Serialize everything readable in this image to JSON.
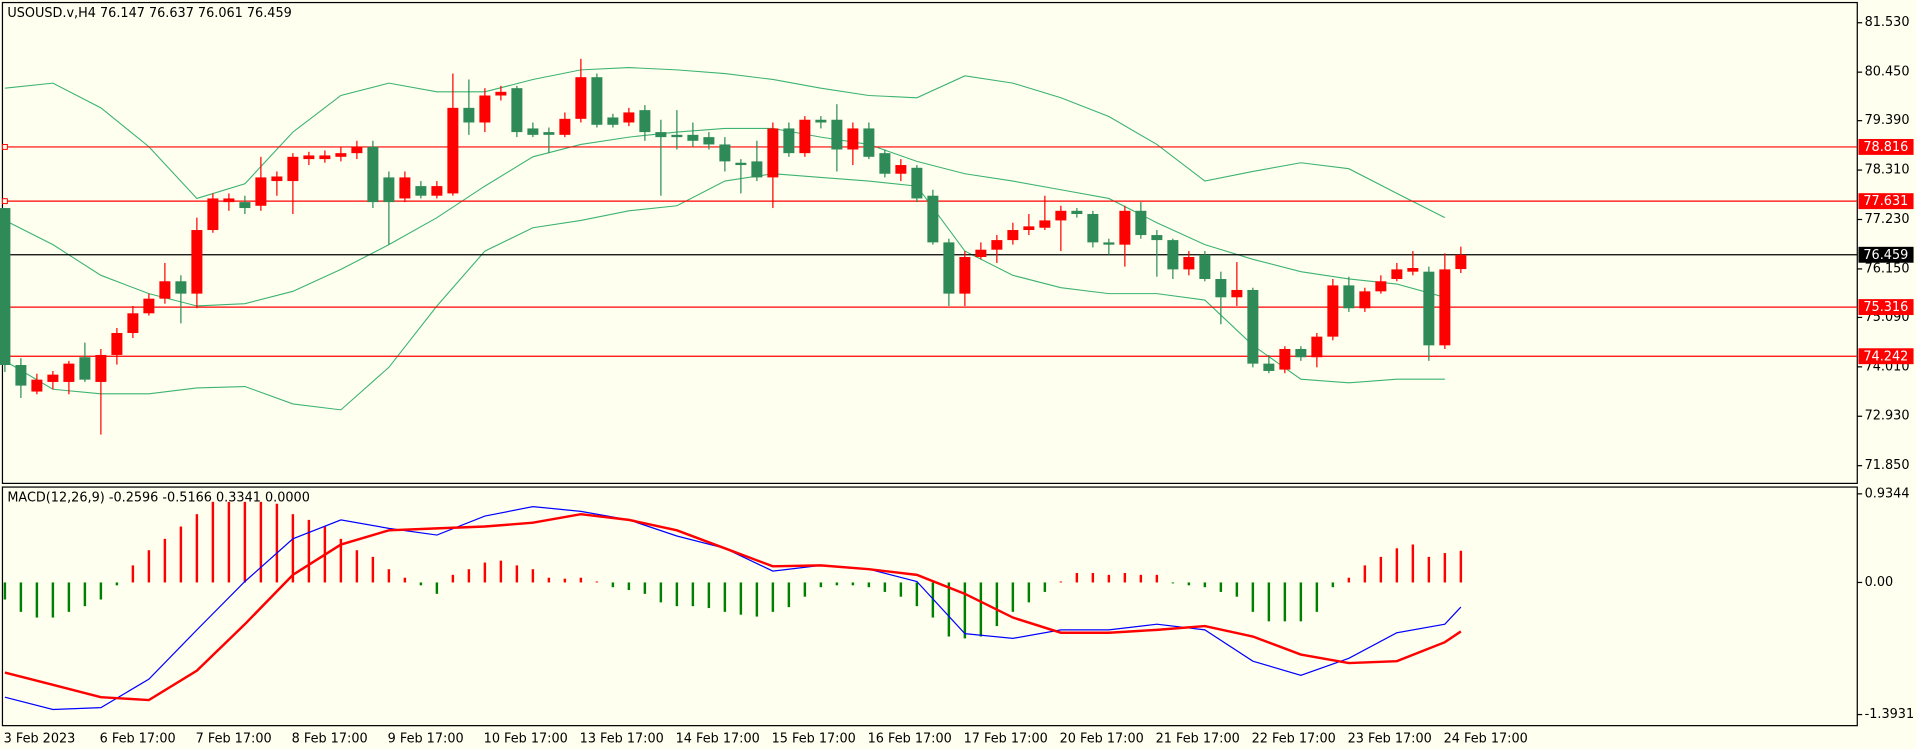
{
  "chart_data": [
    {
      "type": "candlestick",
      "title": "USOUSD.v,H4  76.147 76.637 76.061 76.459",
      "categories": [
        "3 Feb 2023",
        null,
        null,
        null,
        null,
        null,
        "6 Feb 17:00",
        null,
        null,
        null,
        null,
        null,
        "7 Feb 17:00",
        null,
        null,
        null,
        null,
        null,
        "8 Feb 17:00",
        null,
        null,
        null,
        null,
        null,
        "9 Feb 17:00",
        null,
        null,
        null,
        null,
        null,
        "10 Feb 17:00",
        null,
        null,
        null,
        null,
        null,
        "13 Feb 17:00",
        null,
        null,
        null,
        null,
        null,
        "14 Feb 17:00",
        null,
        null,
        null,
        null,
        null,
        "15 Feb 17:00",
        null,
        null,
        null,
        null,
        null,
        "16 Feb 17:00",
        null,
        null,
        null,
        null,
        null,
        "17 Feb 17:00",
        null,
        null,
        null,
        null,
        null,
        "20 Feb 17:00",
        null,
        null,
        null,
        null,
        null,
        "21 Feb 17:00",
        null,
        null,
        null,
        null,
        null,
        "22 Feb 17:00",
        null,
        null,
        null,
        null,
        null,
        "23 Feb 17:00",
        null,
        null,
        null,
        null,
        null,
        "24 Feb 17:00",
        null
      ],
      "open": [
        77.48,
        74.05,
        73.47,
        73.68,
        73.68,
        74.22,
        73.68,
        74.27,
        74.75,
        75.18,
        75.5,
        75.88,
        75.61,
        77.0,
        77.61,
        77.61,
        77.53,
        78.07,
        78.07,
        78.55,
        78.55,
        78.6,
        78.68,
        78.82,
        78.15,
        77.69,
        77.96,
        77.75,
        77.8,
        79.67,
        79.35,
        79.94,
        80.1,
        79.22,
        79.14,
        79.08,
        79.43,
        80.34,
        79.46,
        79.35,
        79.62,
        79.14,
        79.08,
        79.08,
        79.03,
        78.87,
        78.47,
        78.5,
        78.15,
        79.22,
        78.68,
        79.41,
        79.41,
        78.76,
        79.22,
        78.68,
        78.23,
        78.36,
        77.75,
        76.73,
        75.61,
        76.41,
        76.57,
        76.78,
        77.0,
        77.05,
        77.21,
        77.42,
        77.35,
        76.73,
        76.68,
        77.42,
        76.89,
        76.78,
        76.14,
        76.46,
        75.93,
        75.53,
        75.69,
        74.08,
        73.95,
        74.4,
        74.22,
        74.67,
        75.79,
        75.29,
        75.66,
        75.93,
        76.09,
        76.09,
        74.48,
        76.147
      ],
      "high": [
        77.48,
        74.2,
        73.86,
        73.92,
        74.14,
        74.54,
        74.4,
        74.86,
        75.34,
        75.61,
        76.28,
        76.01,
        77.27,
        77.8,
        77.8,
        77.75,
        78.6,
        78.28,
        78.68,
        78.71,
        78.74,
        78.82,
        78.95,
        78.95,
        78.28,
        78.28,
        78.07,
        78.07,
        80.42,
        80.29,
        80.1,
        80.15,
        80.15,
        79.35,
        79.24,
        79.57,
        80.74,
        80.42,
        79.54,
        79.67,
        79.73,
        79.41,
        79.62,
        79.35,
        79.14,
        79.03,
        78.55,
        78.95,
        79.35,
        79.35,
        79.49,
        79.49,
        79.75,
        79.35,
        79.35,
        78.76,
        78.55,
        78.42,
        77.88,
        76.81,
        76.54,
        76.73,
        76.89,
        77.16,
        77.35,
        77.75,
        77.53,
        77.48,
        77.42,
        76.81,
        77.53,
        77.61,
        77.0,
        76.81,
        76.54,
        76.54,
        76.09,
        76.3,
        75.74,
        74.27,
        74.46,
        74.46,
        74.75,
        75.93,
        75.98,
        75.74,
        76.01,
        76.28,
        76.54,
        76.2,
        76.49,
        76.637
      ],
      "low": [
        73.9,
        73.33,
        73.41,
        73.52,
        73.41,
        73.68,
        72.53,
        74.06,
        74.64,
        75.13,
        75.39,
        74.96,
        75.29,
        76.94,
        77.42,
        77.35,
        77.42,
        77.75,
        77.35,
        78.42,
        78.47,
        78.5,
        78.55,
        77.48,
        76.68,
        77.61,
        77.69,
        77.69,
        77.75,
        79.08,
        79.14,
        79.83,
        79.03,
        79.03,
        78.68,
        79.03,
        79.35,
        79.24,
        79.24,
        79.27,
        78.95,
        77.75,
        78.76,
        78.82,
        78.76,
        78.28,
        77.8,
        78.07,
        77.48,
        78.6,
        78.6,
        79.22,
        78.28,
        78.42,
        78.55,
        78.15,
        78.07,
        77.61,
        76.68,
        75.34,
        75.34,
        76.36,
        76.28,
        76.68,
        76.89,
        77.0,
        76.54,
        77.27,
        76.62,
        76.46,
        76.2,
        76.81,
        75.98,
        75.93,
        76.01,
        75.88,
        74.94,
        75.34,
        74.0,
        73.87,
        73.87,
        74.14,
        74.0,
        74.59,
        75.21,
        75.21,
        75.61,
        75.88,
        76.01,
        74.14,
        74.4,
        76.061
      ],
      "close": [
        74.05,
        73.6,
        73.73,
        73.84,
        74.08,
        73.73,
        74.27,
        74.75,
        75.18,
        75.5,
        75.88,
        75.61,
        77.0,
        77.69,
        77.69,
        77.48,
        78.15,
        78.17,
        78.6,
        78.63,
        78.63,
        78.68,
        78.82,
        77.61,
        77.61,
        78.15,
        77.75,
        77.96,
        79.67,
        79.35,
        79.94,
        80.02,
        79.14,
        79.08,
        79.08,
        79.43,
        80.34,
        79.3,
        79.3,
        79.57,
        79.14,
        79.03,
        79.03,
        78.95,
        78.87,
        78.5,
        78.42,
        78.15,
        79.22,
        78.68,
        79.41,
        79.35,
        78.76,
        79.22,
        78.6,
        78.23,
        78.42,
        77.69,
        76.73,
        75.61,
        76.41,
        76.57,
        76.78,
        77.0,
        77.08,
        77.21,
        77.42,
        77.35,
        76.73,
        76.68,
        77.42,
        76.89,
        76.78,
        76.14,
        76.41,
        75.93,
        75.53,
        75.69,
        74.08,
        73.92,
        74.4,
        74.22,
        74.67,
        75.79,
        75.29,
        75.66,
        75.88,
        76.14,
        76.17,
        74.48,
        76.14,
        76.459
      ],
      "up_color": "#ff0000",
      "down_color": "#2e8b57",
      "bands": {
        "color": "#3cb371",
        "x": [
          0,
          3,
          6,
          9,
          12,
          15,
          18,
          21,
          24,
          27,
          30,
          33,
          36,
          39,
          42,
          45,
          48,
          51,
          54,
          57,
          60,
          63,
          66,
          69,
          72,
          75,
          78,
          81,
          84,
          87,
          90
        ],
        "upper": [
          80.1,
          80.21,
          79.67,
          78.82,
          77.69,
          78.01,
          79.14,
          79.94,
          80.21,
          80.02,
          80.02,
          80.29,
          80.5,
          80.55,
          80.5,
          80.42,
          80.29,
          80.1,
          79.94,
          79.89,
          80.37,
          80.21,
          79.89,
          79.48,
          78.87,
          78.07,
          78.28,
          78.47,
          78.34,
          77.8,
          77.27
        ],
        "middle": [
          77.21,
          76.68,
          76.01,
          75.61,
          75.34,
          75.39,
          75.66,
          76.14,
          76.68,
          77.27,
          77.96,
          78.6,
          78.87,
          79.03,
          79.14,
          79.22,
          79.22,
          79.03,
          78.87,
          78.5,
          78.23,
          78.07,
          77.88,
          77.69,
          77.16,
          76.68,
          76.36,
          76.09,
          75.93,
          75.82,
          75.53
        ],
        "lower": [
          74.14,
          73.52,
          73.42,
          73.42,
          73.55,
          73.58,
          73.2,
          73.07,
          74.0,
          75.34,
          76.54,
          77.05,
          77.21,
          77.42,
          77.53,
          78.07,
          78.23,
          78.15,
          78.07,
          77.96,
          76.54,
          76.01,
          75.74,
          75.61,
          75.61,
          75.47,
          74.48,
          73.74,
          73.66,
          73.74,
          73.74
        ]
      },
      "levels": [
        {
          "value": 78.816,
          "color": "#ff0000"
        },
        {
          "value": 77.631,
          "color": "#ff0000"
        },
        {
          "value": 75.316,
          "color": "#ff0000"
        },
        {
          "value": 74.242,
          "color": "#ff0000"
        },
        {
          "value": 76.459,
          "color": "#000000"
        }
      ],
      "ylim": [
        71.463,
        81.971
      ],
      "yticks": [
        {
          "value": 81.53,
          "label": "81.530"
        },
        {
          "value": 80.45,
          "label": "80.450"
        },
        {
          "value": 79.39,
          "label": "79.390"
        },
        {
          "value": 78.31,
          "label": "78.310"
        },
        {
          "value": 77.23,
          "label": "77.230"
        },
        {
          "value": 76.15,
          "label": "76.150"
        },
        {
          "value": 75.09,
          "label": "75.090"
        },
        {
          "value": 74.01,
          "label": "74.010"
        },
        {
          "value": 72.93,
          "label": "72.930"
        },
        {
          "value": 71.85,
          "label": "71.850"
        }
      ]
    },
    {
      "type": "macd",
      "title": "MACD(12,26,9) -0.2596 -0.5166 0.3341 0.0000",
      "values": [
        -0.18,
        -0.31,
        -0.37,
        -0.37,
        -0.31,
        -0.25,
        -0.18,
        -0.03,
        0.18,
        0.34,
        0.46,
        0.59,
        0.72,
        0.85,
        0.85,
        0.85,
        0.85,
        0.83,
        0.72,
        0.66,
        0.59,
        0.46,
        0.34,
        0.27,
        0.14,
        0.05,
        -0.03,
        -0.12,
        0.08,
        0.14,
        0.21,
        0.23,
        0.18,
        0.14,
        0.05,
        0.04,
        0.05,
        0.01,
        -0.05,
        -0.08,
        -0.12,
        -0.21,
        -0.25,
        -0.25,
        -0.27,
        -0.31,
        -0.34,
        -0.36,
        -0.31,
        -0.26,
        -0.15,
        -0.05,
        -0.03,
        -0.03,
        -0.05,
        -0.1,
        -0.15,
        -0.25,
        -0.37,
        -0.57,
        -0.59,
        -0.57,
        -0.46,
        -0.31,
        -0.21,
        -0.1,
        0.01,
        0.1,
        0.1,
        0.08,
        0.1,
        0.08,
        0.08,
        -0.01,
        -0.03,
        -0.05,
        -0.1,
        -0.15,
        -0.31,
        -0.41,
        -0.41,
        -0.41,
        -0.31,
        -0.05,
        0.05,
        0.18,
        0.27,
        0.36,
        0.4,
        0.27,
        0.31,
        0.3341
      ],
      "up_color": "#ff0000",
      "down_color": "#008000",
      "lines": {
        "x": [
          0,
          3,
          6,
          9,
          12,
          15,
          18,
          21,
          24,
          27,
          30,
          33,
          36,
          39,
          42,
          45,
          48,
          51,
          54,
          57,
          60,
          63,
          66,
          69,
          72,
          75,
          78,
          81,
          84,
          87,
          90,
          91
        ],
        "series": [
          {
            "color": "#0000ff",
            "values": [
              -1.21,
              -1.34,
              -1.32,
              -1.02,
              -0.5,
              0.01,
              0.46,
              0.66,
              0.57,
              0.5,
              0.7,
              0.8,
              0.75,
              0.66,
              0.49,
              0.36,
              0.12,
              0.18,
              0.14,
              0.01,
              -0.54,
              -0.59,
              -0.5,
              -0.5,
              -0.44,
              -0.5,
              -0.83,
              -0.98,
              -0.8,
              -0.53,
              -0.44,
              -0.2596
            ]
          },
          {
            "color": "#ff0000",
            "values": [
              -0.95,
              -1.08,
              -1.21,
              -1.24,
              -0.93,
              -0.44,
              0.08,
              0.4,
              0.55,
              0.57,
              0.59,
              0.63,
              0.72,
              0.66,
              0.55,
              0.36,
              0.17,
              0.18,
              0.14,
              0.08,
              -0.12,
              -0.37,
              -0.53,
              -0.53,
              -0.5,
              -0.46,
              -0.57,
              -0.76,
              -0.85,
              -0.83,
              -0.63,
              -0.5166
            ]
          }
        ]
      },
      "ylim": [
        -1.51,
        1.006
      ],
      "yticks": [
        0.9344,
        {
          "value": 0,
          "label": "0.00"
        },
        -1.3931
      ]
    }
  ]
}
